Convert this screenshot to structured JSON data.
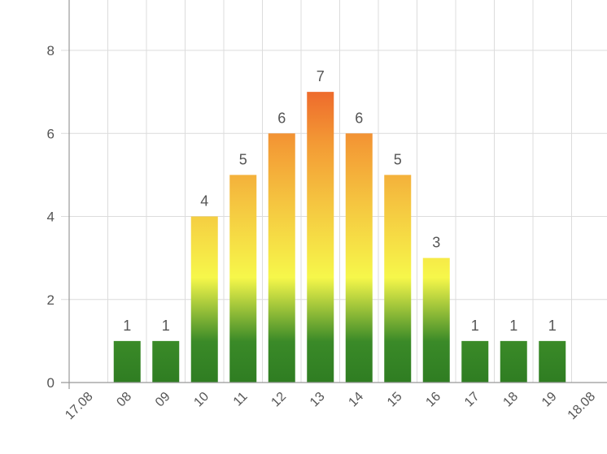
{
  "chart_data": {
    "type": "bar",
    "title": "",
    "xlabel": "",
    "ylabel": "",
    "x_tick_labels": [
      "17.08",
      "08",
      "09",
      "10",
      "11",
      "12",
      "13",
      "14",
      "15",
      "16",
      "17",
      "18",
      "19",
      "18.08"
    ],
    "categories": [
      "08",
      "09",
      "10",
      "11",
      "12",
      "13",
      "14",
      "15",
      "16",
      "17",
      "18",
      "19"
    ],
    "values": [
      1,
      1,
      4,
      5,
      6,
      7,
      6,
      5,
      3,
      1,
      1,
      1
    ],
    "data_labels": [
      "1",
      "1",
      "4",
      "5",
      "6",
      "7",
      "6",
      "5",
      "3",
      "1",
      "1",
      "1"
    ],
    "y_ticks": [
      "0",
      "2",
      "4",
      "6",
      "8"
    ],
    "ylim": [
      0,
      8
    ],
    "grid": true,
    "legend": "none",
    "colors": {
      "bar_gradient": [
        "#2f7d22",
        "#3a8a28",
        "#f6f74a",
        "#f5c440",
        "#f39a35",
        "#ee6a2c"
      ],
      "grid": "#dcdcdc",
      "axis": "#999999",
      "text": "#555555"
    }
  }
}
